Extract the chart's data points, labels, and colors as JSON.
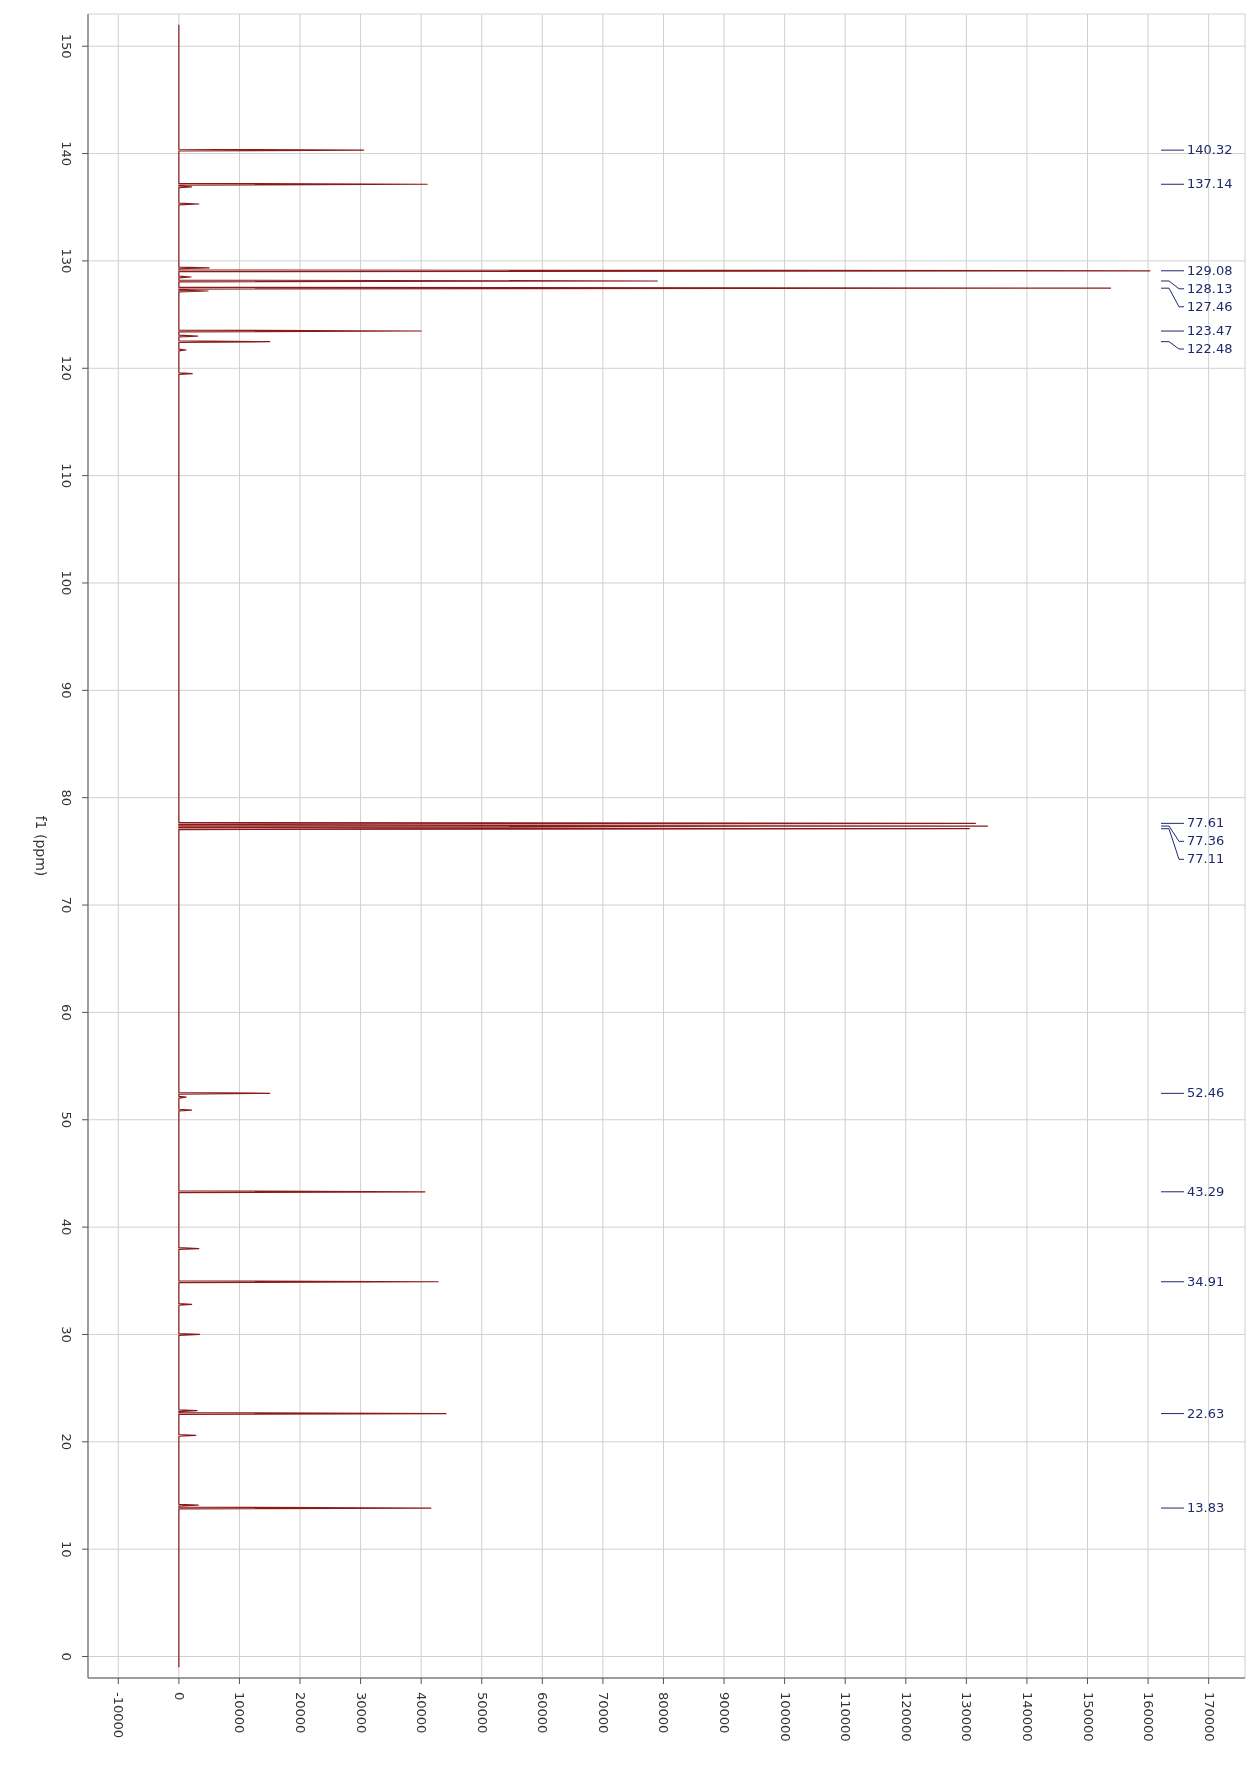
{
  "chart_data": {
    "type": "line",
    "ylabel": "f1 (ppm)",
    "color": "#8b1a1a",
    "x": [
      0,
      0,
      30500,
      0,
      0,
      41000,
      0,
      0,
      2100,
      0,
      0,
      3300,
      0,
      0,
      5000,
      0,
      0,
      160300,
      0,
      0,
      2000,
      0,
      0,
      79000,
      0,
      0,
      153800,
      0,
      0,
      4800,
      0,
      0,
      40000,
      0,
      0,
      3100,
      0,
      0,
      15000,
      0,
      0,
      1200,
      0,
      0,
      2200,
      0,
      0,
      131500,
      0,
      0,
      133500,
      0,
      0,
      130500,
      0,
      0,
      15000,
      0,
      0,
      1200,
      0,
      0,
      2100,
      0,
      0,
      40600,
      0,
      0,
      3300,
      0,
      0,
      42800,
      0,
      0,
      2100,
      0,
      0,
      3400,
      0,
      0,
      3000,
      0,
      0,
      44100,
      0,
      0,
      2800,
      0,
      0,
      3200,
      0,
      0,
      41600,
      0,
      0
    ],
    "values": [
      152,
      140.4,
      140.32,
      140.24,
      137.22,
      137.14,
      137.06,
      136.98,
      136.9,
      136.82,
      135.38,
      135.3,
      135.22,
      129.43,
      129.35,
      129.27,
      129.16,
      129.08,
      129.0,
      128.58,
      128.5,
      128.42,
      128.21,
      128.13,
      128.05,
      127.54,
      127.46,
      127.38,
      127.28,
      127.2,
      127.12,
      123.55,
      123.47,
      123.39,
      123.08,
      123.0,
      122.92,
      122.56,
      122.48,
      122.4,
      121.78,
      121.7,
      121.62,
      119.58,
      119.5,
      119.42,
      77.69,
      77.61,
      77.53,
      77.44,
      77.36,
      77.28,
      77.19,
      77.11,
      77.03,
      52.54,
      52.46,
      52.38,
      52.18,
      52.1,
      52.02,
      50.98,
      50.9,
      50.82,
      43.37,
      43.29,
      43.21,
      38.08,
      38.0,
      37.92,
      34.99,
      34.91,
      34.83,
      32.88,
      32.8,
      32.72,
      30.08,
      30.0,
      29.92,
      22.98,
      22.9,
      22.82,
      22.71,
      22.63,
      22.55,
      20.68,
      20.6,
      20.52,
      14.18,
      14.1,
      14.02,
      13.91,
      13.83,
      13.75,
      -1
    ],
    "xlim": [
      -15000,
      176000
    ],
    "xticks": [
      -10000,
      0,
      10000,
      20000,
      30000,
      40000,
      50000,
      60000,
      70000,
      80000,
      90000,
      100000,
      110000,
      120000,
      130000,
      140000,
      150000,
      160000,
      170000
    ],
    "ylim": [
      -2,
      153
    ],
    "yticks": [
      0,
      10,
      20,
      30,
      40,
      50,
      60,
      70,
      80,
      90,
      100,
      110,
      120,
      130,
      140,
      150
    ],
    "grid": true,
    "marker": "none",
    "line_style": "solid",
    "annotations": [
      "140.32",
      "137.14",
      "129.08",
      "128.13",
      "127.46",
      "123.47",
      "122.48",
      "77.61",
      "77.36",
      "77.11",
      "52.46",
      "43.29",
      "34.91",
      "22.63",
      "13.83"
    ]
  }
}
